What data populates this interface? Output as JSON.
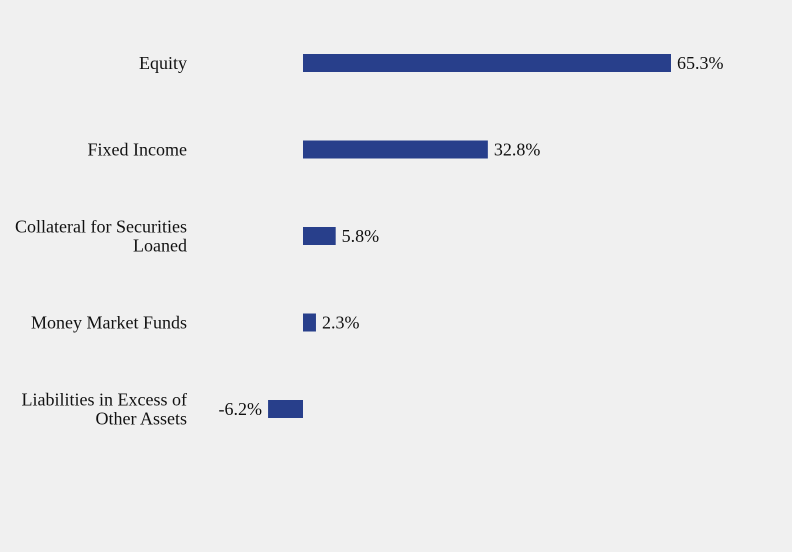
{
  "chart_data": {
    "type": "bar",
    "orientation": "horizontal",
    "categories": [
      [
        "Equity"
      ],
      [
        "Fixed Income"
      ],
      [
        "Collateral for Securities",
        "Loaned"
      ],
      [
        "Money Market Funds"
      ],
      [
        "Liabilities in Excess of",
        "Other Assets"
      ]
    ],
    "values": [
      65.3,
      32.8,
      5.8,
      2.3,
      -6.2
    ],
    "value_labels": [
      "65.3%",
      "32.8%",
      "5.8%",
      "2.3%",
      "-6.2%"
    ],
    "unit": "%",
    "xlim": [
      -6.2,
      65.3
    ],
    "grid": false,
    "legend": "none"
  },
  "colors": {
    "bar": "#283f8b",
    "background": "#f0f0f0",
    "text": "#111111"
  }
}
